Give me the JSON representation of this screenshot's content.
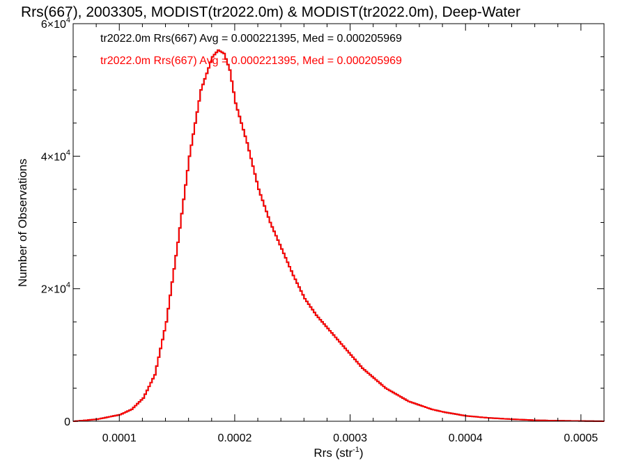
{
  "chart_data": {
    "type": "line",
    "step": true,
    "title": "Rrs(667), 2003305, MODIST(tr2022.0m) & MODIST(tr2022.0m), Deep-Water",
    "xlabel": {
      "base": "Rrs (str",
      "sup": "-1",
      "tail": ")"
    },
    "ylabel": "Number of Observations",
    "xlim": [
      6e-05,
      0.00052
    ],
    "ylim": [
      0,
      60000
    ],
    "x_ticks": [
      {
        "value": 0.0001,
        "label": "0.0001"
      },
      {
        "value": 0.0002,
        "label": "0.0002"
      },
      {
        "value": 0.0003,
        "label": "0.0003"
      },
      {
        "value": 0.0004,
        "label": "0.0004"
      },
      {
        "value": 0.0005,
        "label": "0.0005"
      }
    ],
    "y_ticks": [
      {
        "value": 0,
        "mant": "0",
        "exp": ""
      },
      {
        "value": 20000,
        "mant": "2×10",
        "exp": "4"
      },
      {
        "value": 40000,
        "mant": "4×10",
        "exp": "4"
      },
      {
        "value": 60000,
        "mant": "6×10",
        "exp": "4"
      }
    ],
    "annotations": [
      {
        "text": "tr2022.0m Rrs(667) Avg = 0.000221395, Med = 0.000205969",
        "color": "#000000"
      },
      {
        "text": "tr2022.0m Rrs(667) Avg = 0.000221395, Med = 0.000205969",
        "color": "#ff0000"
      }
    ],
    "series": [
      {
        "color": "#000000",
        "x": [
          6e-05,
          8e-05,
          0.0001,
          0.00011,
          0.00012,
          0.00013,
          0.00014,
          0.00015,
          0.00016,
          0.00017,
          0.00018,
          0.000185,
          0.00019,
          0.000195,
          0.0002,
          0.00021,
          0.00022,
          0.00023,
          0.00024,
          0.00025,
          0.00026,
          0.00027,
          0.00028,
          0.00029,
          0.0003,
          0.00031,
          0.00032,
          0.00033,
          0.00034,
          0.00035,
          0.00036,
          0.00037,
          0.00038,
          0.0004,
          0.00042,
          0.00044,
          0.00046,
          0.00048,
          0.0005,
          0.00052
        ],
        "y": [
          0,
          300,
          1000,
          1800,
          3500,
          7000,
          15000,
          27000,
          40000,
          50000,
          55000,
          56000,
          55500,
          53000,
          48000,
          42000,
          35000,
          30000,
          26000,
          22000,
          18500,
          16000,
          14000,
          12000,
          10000,
          8000,
          6500,
          5000,
          4000,
          3000,
          2400,
          1800,
          1400,
          800,
          500,
          300,
          150,
          80,
          40,
          0
        ]
      },
      {
        "color": "#ff0000",
        "x": [
          6e-05,
          8e-05,
          0.0001,
          0.00011,
          0.00012,
          0.00013,
          0.00014,
          0.00015,
          0.00016,
          0.00017,
          0.00018,
          0.000185,
          0.00019,
          0.000195,
          0.0002,
          0.00021,
          0.00022,
          0.00023,
          0.00024,
          0.00025,
          0.00026,
          0.00027,
          0.00028,
          0.00029,
          0.0003,
          0.00031,
          0.00032,
          0.00033,
          0.00034,
          0.00035,
          0.00036,
          0.00037,
          0.00038,
          0.0004,
          0.00042,
          0.00044,
          0.00046,
          0.00048,
          0.0005,
          0.00052
        ],
        "y": [
          0,
          300,
          1000,
          1800,
          3500,
          7000,
          15000,
          27000,
          40000,
          50000,
          55000,
          56000,
          55500,
          53000,
          48000,
          42000,
          35000,
          30000,
          26000,
          22000,
          18500,
          16000,
          14000,
          12000,
          10000,
          8000,
          6500,
          5000,
          4000,
          3000,
          2400,
          1800,
          1400,
          800,
          500,
          300,
          150,
          80,
          40,
          0
        ]
      }
    ]
  }
}
